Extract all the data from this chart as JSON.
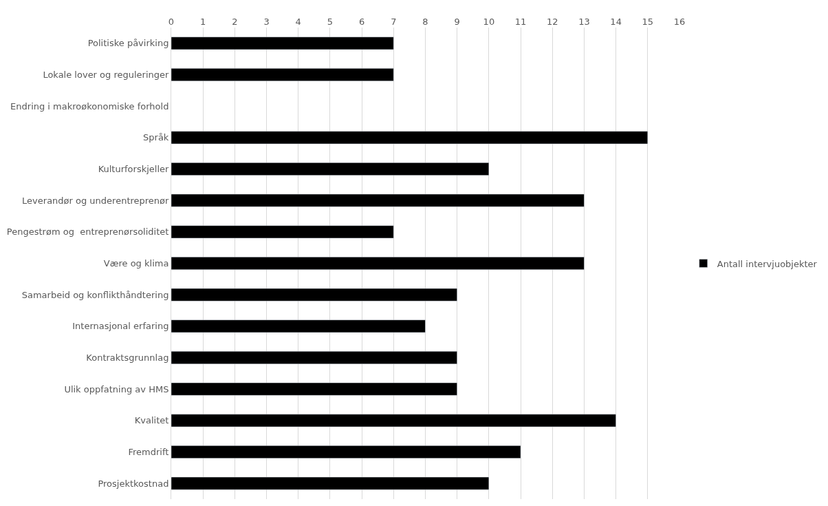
{
  "chart_data": {
    "type": "bar",
    "orientation": "horizontal",
    "categories": [
      "Politiske påvirking",
      "Lokale lover og reguleringer",
      "Endring i makroøkonomiske forhold",
      "Språk",
      "Kulturforskjeller",
      "Leverandør og underentreprenør",
      "Pengestrøm og  entreprenørsoliditet",
      "Være og klima",
      "Samarbeid og konflikthåndtering",
      "Internasjonal erfaring",
      "Kontraktsgrunnlag",
      "Ulik oppfatning av HMS",
      "Kvalitet",
      "Fremdrift",
      "Prosjektkostnad"
    ],
    "series": [
      {
        "name": "Antall intervjuobjekter",
        "color": "#000000",
        "values": [
          7,
          7,
          null,
          15,
          10,
          13,
          7,
          13,
          9,
          8,
          9,
          9,
          14,
          11,
          10
        ]
      }
    ],
    "xlim": [
      0,
      16
    ],
    "xticks": [
      0,
      1,
      2,
      3,
      4,
      5,
      6,
      7,
      8,
      9,
      10,
      11,
      12,
      13,
      14,
      15,
      16
    ],
    "grid": "x",
    "legend": "right"
  }
}
